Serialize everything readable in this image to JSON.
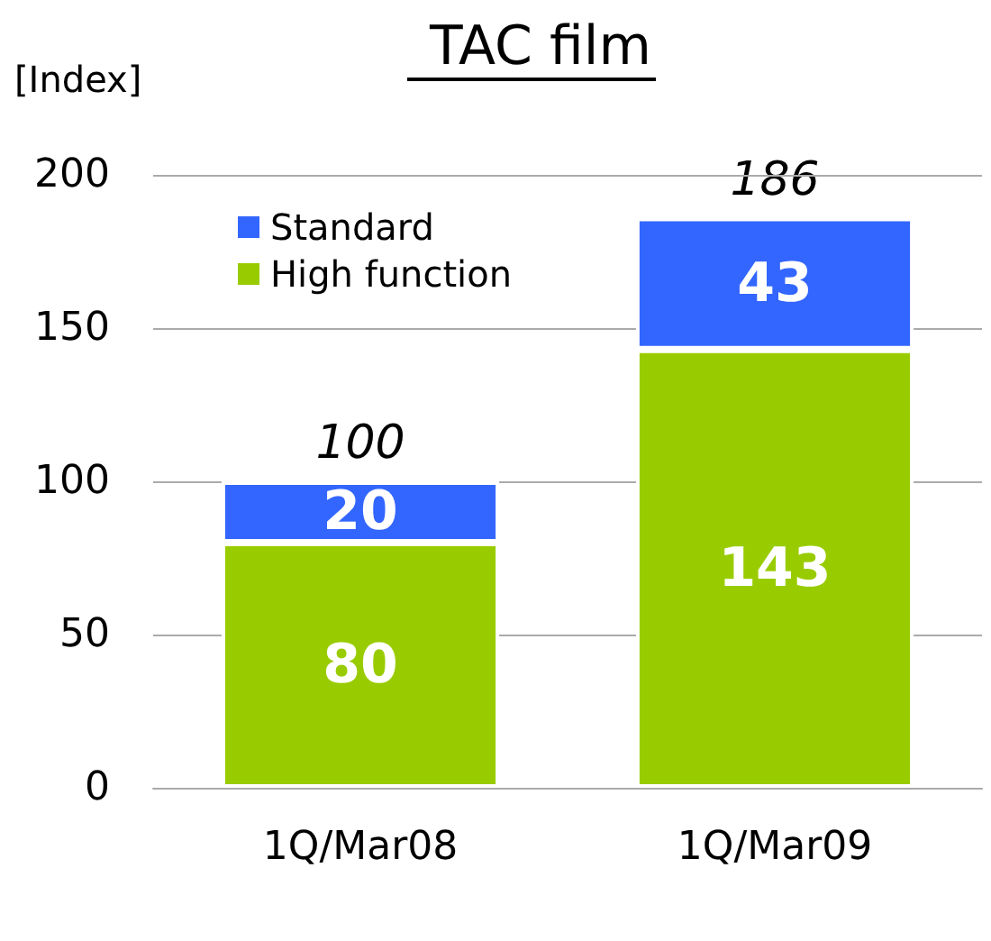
{
  "chart_data": {
    "type": "bar",
    "title": "TAC film",
    "ylabel": "[Index]",
    "categories": [
      "1Q/Mar08",
      "1Q/Mar09"
    ],
    "series": [
      {
        "name": "High function",
        "color": "#99cc00",
        "values": [
          80,
          143
        ]
      },
      {
        "name": "Standard",
        "color": "#3366ff",
        "values": [
          20,
          43
        ]
      }
    ],
    "stacked": true,
    "data_labels": true,
    "totals": [
      "100",
      "186"
    ],
    "ylim": [
      0,
      200
    ],
    "yticks": [
      0,
      50,
      100,
      150,
      200
    ],
    "grid": "y",
    "legend": "top left"
  }
}
